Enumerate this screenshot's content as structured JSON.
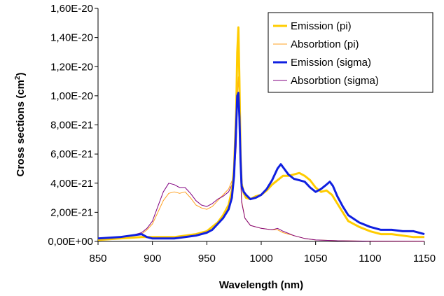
{
  "chart_data": {
    "type": "line",
    "xlabel": "Wavelength (nm)",
    "ylabel": "Cross sections (cm",
    "ylabel_sup": "2",
    "ylabel_close": ")",
    "xlim": [
      850,
      1150
    ],
    "ylim": [
      0,
      1.6e-20
    ],
    "x_ticks": [
      850,
      900,
      950,
      1000,
      1050,
      1100,
      1150
    ],
    "x_tick_labels": [
      "850",
      "900",
      "950",
      "1000",
      "1050",
      "1100",
      "1150"
    ],
    "y_ticks": [
      0,
      2e-21,
      4e-21,
      6e-21,
      8e-21,
      1e-20,
      1.2e-20,
      1.4e-20,
      1.6e-20
    ],
    "y_tick_labels": [
      "0,00E+00",
      "2,00E-21",
      "4,00E-21",
      "6,00E-21",
      "8,00E-21",
      "1,00E-20",
      "1,20E-20",
      "1,40E-20",
      "1,60E-20"
    ],
    "grid": false,
    "legend_position": "top-right",
    "series": [
      {
        "name": "Emission (pi)",
        "color": "#FFCC00",
        "width": 3,
        "x": [
          850,
          870,
          890,
          900,
          910,
          920,
          930,
          940,
          950,
          955,
          960,
          965,
          970,
          973,
          975,
          977,
          978,
          979,
          980,
          981,
          982,
          984,
          986,
          990,
          995,
          1000,
          1005,
          1010,
          1015,
          1020,
          1025,
          1030,
          1035,
          1040,
          1045,
          1050,
          1055,
          1060,
          1065,
          1070,
          1075,
          1080,
          1090,
          1100,
          1110,
          1120,
          1130,
          1140,
          1150
        ],
        "y": [
          1e-22,
          2e-22,
          3e-22,
          3e-22,
          3e-22,
          3e-22,
          4e-22,
          5e-22,
          7e-22,
          1e-21,
          1.3e-21,
          1.8e-21,
          2.5e-21,
          3.5e-21,
          5e-21,
          9e-21,
          1.3e-20,
          1.47e-20,
          1.1e-20,
          6e-21,
          4e-21,
          3.3e-21,
          3e-21,
          2.9e-21,
          3.1e-21,
          3.2e-21,
          3.5e-21,
          3.9e-21,
          4.2e-21,
          4.5e-21,
          4.5e-21,
          4.6e-21,
          4.7e-21,
          4.5e-21,
          4.2e-21,
          3.7e-21,
          3.4e-21,
          3.5e-21,
          3.2e-21,
          2.6e-21,
          2e-21,
          1.4e-21,
          1e-21,
          7e-22,
          5e-22,
          5e-22,
          4e-22,
          3e-22,
          3e-22
        ]
      },
      {
        "name": "Absorbtion (pi)",
        "color": "#FFA020",
        "width": 1,
        "x": [
          850,
          870,
          880,
          890,
          895,
          900,
          905,
          910,
          915,
          920,
          925,
          930,
          935,
          940,
          945,
          950,
          955,
          960,
          965,
          970,
          975,
          977,
          978,
          979,
          980,
          981,
          982,
          985,
          990,
          1000,
          1010,
          1015,
          1020,
          1030,
          1040,
          1050,
          1070,
          1100,
          1150
        ],
        "y": [
          2e-22,
          3e-22,
          4e-22,
          5e-22,
          8e-22,
          1.2e-21,
          2e-21,
          2.8e-21,
          3.3e-21,
          3.4e-21,
          3.3e-21,
          3.4e-21,
          3e-21,
          2.5e-21,
          2.3e-21,
          2.2e-21,
          2.4e-21,
          2.8e-21,
          3.2e-21,
          3.6e-21,
          4.5e-21,
          7e-21,
          9.5e-21,
          1.13e-20,
          9e-21,
          5e-21,
          2.8e-21,
          1.6e-21,
          1.1e-21,
          9e-22,
          8e-22,
          8e-22,
          6e-22,
          4e-22,
          2e-22,
          1e-22,
          5e-23,
          2e-23,
          1e-23
        ]
      },
      {
        "name": "Emission (sigma)",
        "color": "#1020E0",
        "width": 3,
        "x": [
          850,
          870,
          880,
          890,
          895,
          900,
          910,
          920,
          930,
          940,
          950,
          955,
          960,
          965,
          970,
          973,
          975,
          977,
          978,
          979,
          980,
          981,
          982,
          984,
          986,
          990,
          995,
          1000,
          1005,
          1010,
          1015,
          1018,
          1020,
          1025,
          1030,
          1035,
          1040,
          1045,
          1050,
          1055,
          1060,
          1063,
          1066,
          1070,
          1075,
          1080,
          1090,
          1100,
          1110,
          1120,
          1130,
          1140,
          1150
        ],
        "y": [
          2e-22,
          3e-22,
          4e-22,
          5e-22,
          3e-22,
          2e-22,
          2e-22,
          2e-22,
          3e-22,
          4e-22,
          6e-22,
          8e-22,
          1.2e-21,
          1.6e-21,
          2.2e-21,
          3e-21,
          4.5e-21,
          8e-21,
          1e-20,
          1.02e-20,
          8.5e-21,
          5.5e-21,
          3.8e-21,
          3.4e-21,
          3.2e-21,
          2.9e-21,
          3e-21,
          3.2e-21,
          3.6e-21,
          4.2e-21,
          5e-21,
          5.3e-21,
          5.1e-21,
          4.6e-21,
          4.3e-21,
          4.2e-21,
          4.1e-21,
          3.7e-21,
          3.4e-21,
          3.6e-21,
          3.9e-21,
          4.1e-21,
          3.8e-21,
          3.1e-21,
          2.4e-21,
          1.8e-21,
          1.3e-21,
          1e-21,
          8e-22,
          8e-22,
          7e-22,
          7e-22,
          5e-22
        ]
      },
      {
        "name": "Absorbtion (sigma)",
        "color": "#800080",
        "width": 1,
        "x": [
          850,
          870,
          880,
          890,
          895,
          900,
          905,
          910,
          915,
          920,
          925,
          930,
          935,
          940,
          945,
          950,
          955,
          960,
          965,
          970,
          975,
          977,
          978,
          979,
          980,
          981,
          982,
          985,
          990,
          1000,
          1010,
          1015,
          1020,
          1030,
          1040,
          1050,
          1070,
          1100,
          1150
        ],
        "y": [
          2e-22,
          3e-22,
          4e-22,
          6e-22,
          9e-22,
          1.4e-21,
          2.4e-21,
          3.4e-21,
          4e-21,
          3.9e-21,
          3.7e-21,
          3.7e-21,
          3.3e-21,
          2.8e-21,
          2.5e-21,
          2.4e-21,
          2.6e-21,
          2.9e-21,
          3.1e-21,
          3.4e-21,
          4.2e-21,
          6.5e-21,
          9e-21,
          1.02e-20,
          8.2e-21,
          4.5e-21,
          2.7e-21,
          1.6e-21,
          1.1e-21,
          9e-22,
          8e-22,
          9e-22,
          7e-22,
          4e-22,
          2e-22,
          1e-22,
          5e-23,
          2e-23,
          1e-23
        ]
      }
    ]
  }
}
